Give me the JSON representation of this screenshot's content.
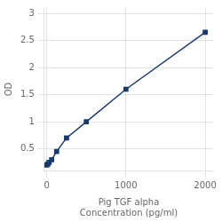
{
  "chart_data": {
    "type": "line",
    "x": [
      0,
      15.625,
      31.25,
      62.5,
      125,
      250,
      500,
      1000,
      2000
    ],
    "values": [
      0.2,
      0.22,
      0.25,
      0.3,
      0.45,
      0.7,
      1.0,
      1.6,
      2.65
    ],
    "color": "#1a3a6b",
    "marker": "square",
    "xlabel": [
      "Pig TGF alpha",
      "Concentration (pg/ml)"
    ],
    "ylabel": "OD",
    "xlim": [
      -30,
      2100
    ],
    "xticks": [
      0,
      1000,
      2000
    ],
    "ylim": [
      0.1,
      3.1
    ],
    "yticks": [
      0.5,
      1,
      1.5,
      2,
      2.5,
      3
    ],
    "grid": true
  }
}
